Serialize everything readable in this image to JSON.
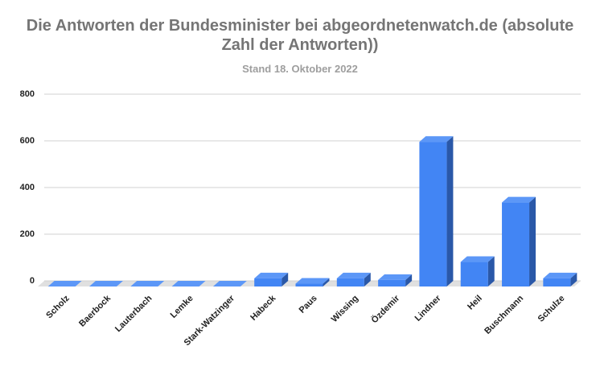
{
  "chart_data": {
    "type": "bar3d",
    "title": "Die Antworten der Bundesminister bei abgeordnetenwatch.de (absolute Zahl der Antworten))",
    "subtitle": "Stand 18. Oktober 2022",
    "categories": [
      "Scholz",
      "Baerbock",
      "Lauterbach",
      "Lemke",
      "Stark-Watzinger",
      "Habeck",
      "Paus",
      "Wissing",
      "Özdemir",
      "Lindner",
      "Heil",
      "Buschmann",
      "Schulze"
    ],
    "values": [
      0,
      0,
      0,
      0,
      0,
      35,
      12,
      35,
      28,
      620,
      105,
      360,
      35
    ],
    "color": "#4285f4",
    "ylim": [
      0,
      800
    ],
    "yticks": [
      0,
      200,
      400,
      600,
      800
    ],
    "grid": true
  }
}
